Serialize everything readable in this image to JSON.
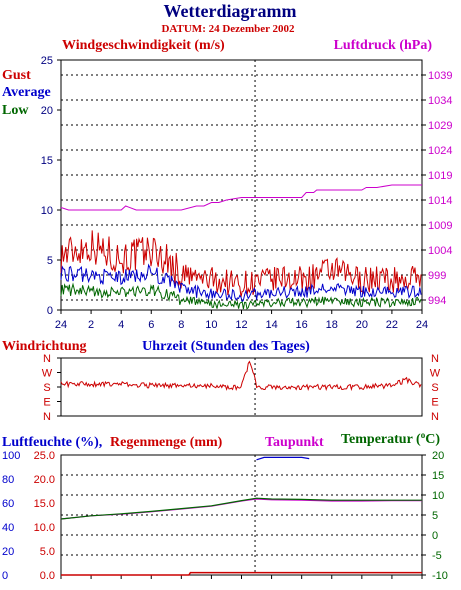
{
  "title": "Wetterdiagramm",
  "subtitle": "DATUM: 24 Dezember 2002",
  "colors": {
    "navy": "#000080",
    "red": "#cc0000",
    "blue": "#0000cc",
    "green": "#006600",
    "magenta": "#cc00cc"
  },
  "chart_data": [
    {
      "type": "line",
      "name": "wind-and-pressure",
      "title_left": "Windgeschwindigkeit (m/s)",
      "title_right": "Luftdruck (hPa)",
      "legend": [
        "Gust",
        "Average",
        "Low"
      ],
      "x_ticks": [
        "24",
        "2",
        "4",
        "6",
        "8",
        "10",
        "12",
        "14",
        "16",
        "18",
        "20",
        "22",
        "24"
      ],
      "xlabel": "Uhrzeit (Stunden des Tages)",
      "ylim": [
        0,
        25
      ],
      "y_ticks": [
        "0",
        "5",
        "10",
        "15",
        "20",
        "25"
      ],
      "y2lim": [
        992,
        1042
      ],
      "y2_ticks": [
        "994",
        "999",
        "1004",
        "1009",
        "1014",
        "1019",
        "1024",
        "1029",
        "1034",
        "1039"
      ],
      "series": [
        {
          "name": "Gust",
          "color": "#cc0000",
          "x": [
            0,
            1,
            2,
            3,
            4,
            5,
            6,
            7,
            8,
            9,
            10,
            11,
            12,
            13,
            14,
            15,
            16,
            17,
            18,
            19,
            20,
            21,
            22,
            23,
            24
          ],
          "values": [
            5.5,
            6.0,
            6.5,
            5.8,
            5.2,
            5.5,
            6.0,
            5.0,
            3.5,
            3.2,
            3.0,
            2.8,
            2.6,
            2.8,
            3.0,
            3.2,
            3.0,
            3.5,
            4.0,
            3.5,
            3.0,
            3.2,
            3.0,
            3.0,
            3.5
          ]
        },
        {
          "name": "Average",
          "color": "#0000cc",
          "x": [
            0,
            1,
            2,
            3,
            4,
            5,
            6,
            7,
            8,
            9,
            10,
            11,
            12,
            13,
            14,
            15,
            16,
            17,
            18,
            19,
            20,
            21,
            22,
            23,
            24
          ],
          "values": [
            3.8,
            3.5,
            3.5,
            3.3,
            3.2,
            3.5,
            3.8,
            3.0,
            2.2,
            1.8,
            1.7,
            1.5,
            1.4,
            1.6,
            1.7,
            1.8,
            1.7,
            2.0,
            2.2,
            2.0,
            1.8,
            1.9,
            1.8,
            1.8,
            2.0
          ]
        },
        {
          "name": "Low",
          "color": "#006600",
          "x": [
            0,
            1,
            2,
            3,
            4,
            5,
            6,
            7,
            8,
            9,
            10,
            11,
            12,
            13,
            14,
            15,
            16,
            17,
            18,
            19,
            20,
            21,
            22,
            23,
            24
          ],
          "values": [
            2.0,
            2.0,
            1.8,
            1.8,
            1.7,
            1.9,
            2.0,
            1.6,
            1.0,
            0.8,
            0.6,
            0.5,
            0.5,
            0.6,
            0.7,
            0.8,
            0.7,
            0.9,
            1.0,
            0.8,
            0.7,
            0.8,
            0.7,
            0.8,
            0.9
          ]
        },
        {
          "name": "Luftdruck",
          "color": "#cc00cc",
          "axis": "right",
          "x": [
            0,
            0.5,
            4,
            4.3,
            5,
            8,
            9,
            9.5,
            10,
            10.5,
            11,
            12,
            13,
            14,
            16,
            16.3,
            16.8,
            17,
            20,
            20.3,
            21,
            22,
            22.5,
            24
          ],
          "values": [
            1012.5,
            1012.0,
            1012.0,
            1012.8,
            1012.0,
            1012.0,
            1012.8,
            1012.8,
            1013.5,
            1013.5,
            1014.0,
            1014.5,
            1014.5,
            1014.5,
            1014.5,
            1015.5,
            1015.5,
            1016.0,
            1016.0,
            1016.5,
            1016.5,
            1017.0,
            1017.0,
            1017.0
          ]
        }
      ]
    },
    {
      "type": "line",
      "name": "wind-direction",
      "title": "Windrichtung",
      "y_ticks": [
        "N",
        "W",
        "S",
        "E",
        "N"
      ],
      "series": [
        {
          "name": "Windrichtung",
          "color": "#cc0000",
          "x": [
            0,
            2,
            4,
            6,
            8,
            10,
            11,
            12,
            12.5,
            12.8,
            13,
            14,
            16,
            18,
            20,
            22,
            23,
            24
          ],
          "values": [
            1.8,
            1.8,
            1.8,
            1.9,
            1.9,
            1.9,
            2.0,
            2.0,
            0.3,
            1.0,
            2.0,
            2.0,
            2.0,
            2.0,
            2.0,
            1.9,
            1.5,
            2.0
          ]
        }
      ]
    },
    {
      "type": "line",
      "name": "humidity-rain-temperature",
      "title_left": "Luftfeuchte (%),",
      "title_rain": "Regenmenge (mm)",
      "title_dew": "Taupunkt",
      "title_right": "Temperatur (",
      "title_right_unit": "o",
      "title_right_end": "C)",
      "y_ticks_humidity": [
        "0",
        "20",
        "40",
        "60",
        "80",
        "100"
      ],
      "y_ticks_rain": [
        "0.0",
        "5.0",
        "10.0",
        "15.0",
        "20.0",
        "25.0"
      ],
      "y_ticks_temp": [
        "-10",
        "-5",
        "0",
        "5",
        "10",
        "15",
        "20"
      ],
      "ylim_temp": [
        -10,
        20
      ],
      "ylim_rain": [
        0,
        25
      ],
      "ylim_humidity": [
        0,
        100
      ],
      "series": [
        {
          "name": "Luftfeuchte",
          "color": "#0000cc",
          "x": [
            13,
            13.5,
            16,
            16.5
          ],
          "values": [
            96,
            98,
            98,
            97
          ]
        },
        {
          "name": "Taupunkt",
          "color": "#cc00cc",
          "x": [
            0,
            2,
            4,
            6,
            8,
            10,
            12,
            13,
            14,
            16,
            18,
            20,
            22,
            24
          ],
          "values": [
            4.0,
            4.8,
            5.2,
            5.8,
            6.5,
            7.2,
            8.5,
            9.0,
            8.8,
            8.7,
            8.5,
            8.5,
            8.6,
            8.6
          ]
        },
        {
          "name": "Temperatur",
          "color": "#006600",
          "x": [
            0,
            2,
            4,
            6,
            8,
            10,
            12,
            13,
            14,
            16,
            18,
            20,
            22,
            24
          ],
          "values": [
            4.0,
            4.8,
            5.3,
            5.9,
            6.6,
            7.3,
            8.6,
            9.2,
            9.0,
            8.9,
            8.7,
            8.7,
            8.7,
            8.7
          ]
        },
        {
          "name": "Regenmenge",
          "color": "#cc0000",
          "x": [
            0,
            8.5,
            8.6,
            24
          ],
          "values": [
            0,
            0,
            0.5,
            0.5
          ]
        }
      ]
    }
  ]
}
